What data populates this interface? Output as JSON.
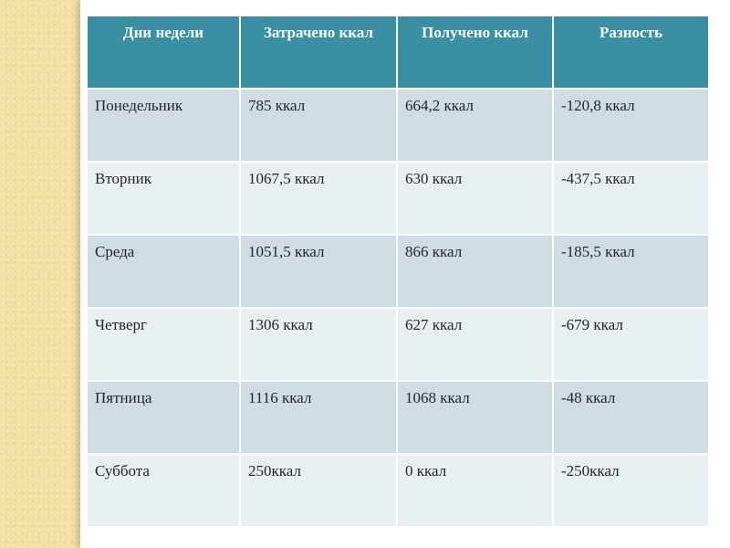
{
  "table": {
    "headers": [
      "Дни недели",
      "Затрачено ккал",
      "Получено ккал",
      "Разность"
    ],
    "rows": [
      [
        "Понедельник",
        "785 ккал",
        "664,2 ккал",
        "-120,8 ккал"
      ],
      [
        "Вторник",
        "1067,5 ккал",
        "630 ккал",
        "-437,5 ккал"
      ],
      [
        "Среда",
        "1051,5 ккал",
        "866 ккал",
        "-185,5 ккал"
      ],
      [
        "Четверг",
        "1306 ккал",
        "627 ккал",
        "-679 ккал"
      ],
      [
        "Пятница",
        "1116 ккал",
        "1068 ккал",
        "-48 ккал"
      ],
      [
        "Суббота",
        "250ккал",
        "0 ккал",
        "-250ккал"
      ]
    ]
  },
  "colors": {
    "header_bg": "#3a8fa3",
    "row_dark": "#cfdde3",
    "row_light": "#e8eff2",
    "page_bg": "#f1dfa3"
  }
}
